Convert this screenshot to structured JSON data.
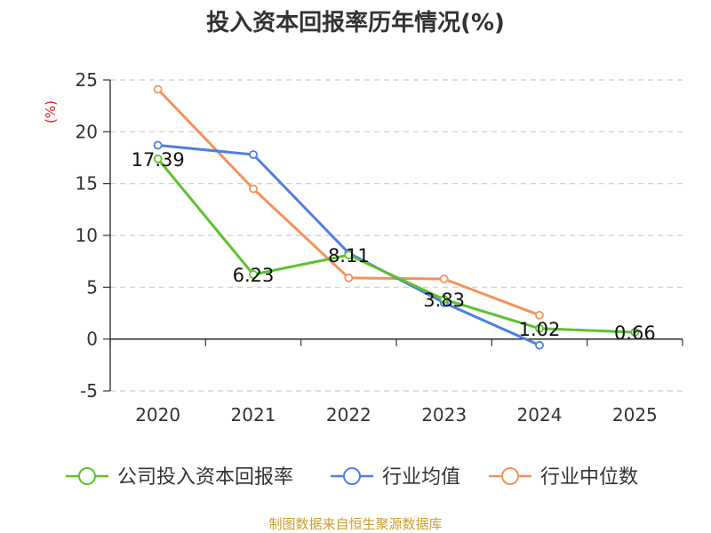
{
  "chart_data": {
    "type": "line",
    "title": "投入资本回报率历年情况(%)",
    "ylabel": "(%)",
    "xlabel": "",
    "categories": [
      "2020",
      "2021",
      "2022",
      "2023",
      "2024",
      "2025"
    ],
    "ylim": [
      -5,
      25
    ],
    "yticks": [
      25,
      20,
      15,
      10,
      5,
      0,
      -5
    ],
    "grid": true,
    "legend_position": "bottom",
    "series": [
      {
        "name": "公司投入资本回报率",
        "color": "#5cc230",
        "values": [
          17.39,
          6.23,
          8.11,
          3.83,
          1.02,
          0.66
        ],
        "labels": [
          "17.39",
          "6.23",
          "8.11",
          "3.83",
          "1.02",
          "0.66"
        ]
      },
      {
        "name": "行业均值",
        "color": "#4e80e0",
        "values": [
          18.7,
          17.8,
          8.3,
          3.5,
          -0.6,
          null
        ]
      },
      {
        "name": "行业中位数",
        "color": "#f4925a",
        "values": [
          24.1,
          14.5,
          5.9,
          5.8,
          2.3,
          null
        ]
      }
    ]
  },
  "footer": {
    "source": "制图数据来自恒生聚源数据库",
    "source_color": "#c8a030"
  }
}
